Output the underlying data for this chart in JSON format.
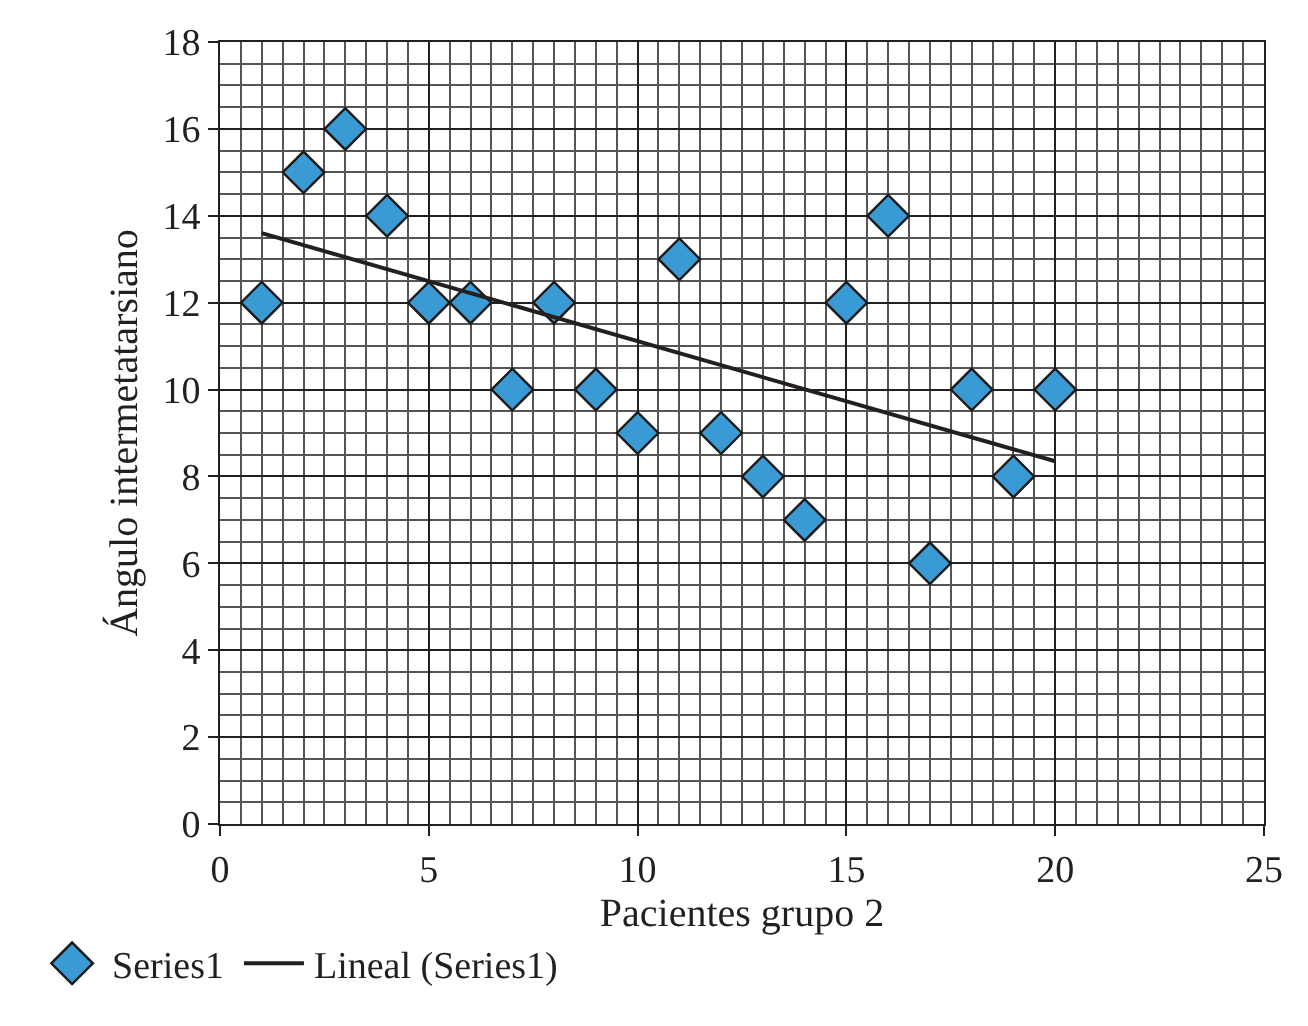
{
  "chart_data": {
    "type": "scatter",
    "xlabel": "Pacientes grupo 2",
    "ylabel": "Ángulo intermetatarsiano",
    "x": [
      1,
      2,
      3,
      4,
      5,
      6,
      7,
      8,
      9,
      10,
      11,
      12,
      13,
      14,
      15,
      16,
      17,
      18,
      19,
      20
    ],
    "series": [
      {
        "name": "Series1",
        "color": "#3a9ad4",
        "marker": "diamond",
        "values": [
          12,
          15,
          16,
          14,
          12,
          12,
          10,
          12,
          10,
          9,
          13,
          9,
          8,
          7,
          12,
          14,
          6,
          10,
          8,
          10
        ]
      },
      {
        "name": "Lineal (Series1)",
        "type": "line",
        "color": "#231f20",
        "marker": "none",
        "line_style": "solid",
        "x": [
          1,
          20
        ],
        "values": [
          13.6,
          8.35
        ]
      }
    ],
    "xlim": [
      0,
      25
    ],
    "xticks": [
      0,
      5,
      10,
      15,
      20,
      25
    ],
    "ylim": [
      0,
      18
    ],
    "yticks": [
      0,
      2,
      4,
      6,
      8,
      10,
      12,
      14,
      16,
      18
    ],
    "grid": true,
    "legend": "bottom"
  }
}
